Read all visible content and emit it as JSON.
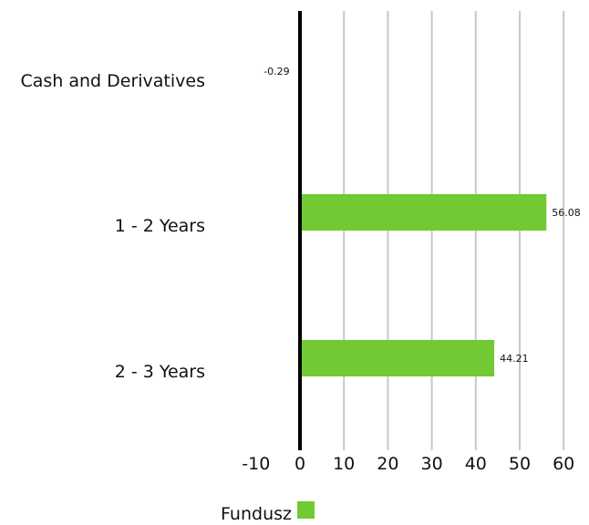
{
  "chart_data": {
    "type": "bar",
    "orientation": "horizontal",
    "categories": [
      "Cash and Derivatives",
      "1 - 2 Years",
      "2 - 3 Years"
    ],
    "series": [
      {
        "name": "Fundusz",
        "values": [
          -0.29,
          56.08,
          44.21
        ],
        "color": "#72c934"
      }
    ],
    "data_labels": [
      "-0.29",
      "56.08",
      "44.21"
    ],
    "xlim": [
      -10,
      60
    ],
    "xticks": [
      -10,
      0,
      10,
      20,
      30,
      40,
      50,
      60
    ],
    "grid": true,
    "legend_position": "bottom",
    "title": "",
    "xlabel": "",
    "ylabel": ""
  }
}
